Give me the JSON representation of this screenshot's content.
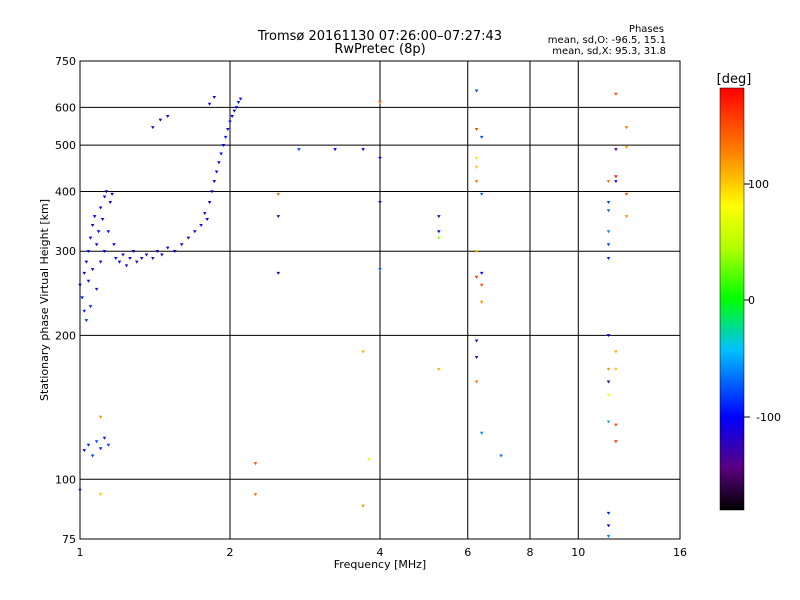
{
  "header": {
    "title_line1": "Tromsø 20161130 07:26:00–07:27:43",
    "title_line2": "RwPretec (8p)"
  },
  "stats": {
    "heading": "Phases",
    "line_o": "mean, sd,O: -96.5, 15.1",
    "line_x": "mean, sd,X:  95.3, 31.8"
  },
  "colorbar": {
    "unit_label": "[deg]",
    "ticks": [
      "100",
      "0",
      "-100"
    ]
  },
  "chart_data": {
    "type": "scatter",
    "xlabel": "Frequency [MHz]",
    "ylabel": "Stationary phase Virtual Height [km]",
    "x_scale": "log",
    "y_scale": "log",
    "xlim": [
      1,
      16
    ],
    "ylim": [
      75,
      750
    ],
    "x_ticks": [
      1,
      2,
      4,
      6,
      8,
      10,
      16
    ],
    "y_ticks": [
      75,
      100,
      200,
      300,
      400,
      500,
      600,
      750
    ],
    "grid": true,
    "color_scale": {
      "label": "[deg]",
      "range": [
        -180,
        180
      ],
      "colormap": "rainbow"
    },
    "series": [
      {
        "points": [
          {
            "f": 1.0,
            "h": 255,
            "p": -100
          },
          {
            "f": 1.01,
            "h": 240,
            "p": -95
          },
          {
            "f": 1.02,
            "h": 270,
            "p": -100
          },
          {
            "f": 1.02,
            "h": 225,
            "p": -90
          },
          {
            "f": 1.03,
            "h": 285,
            "p": -100
          },
          {
            "f": 1.03,
            "h": 215,
            "p": -85
          },
          {
            "f": 1.04,
            "h": 300,
            "p": -95
          },
          {
            "f": 1.04,
            "h": 260,
            "p": -100
          },
          {
            "f": 1.05,
            "h": 320,
            "p": -100
          },
          {
            "f": 1.05,
            "h": 230,
            "p": -90
          },
          {
            "f": 1.06,
            "h": 340,
            "p": -105
          },
          {
            "f": 1.06,
            "h": 275,
            "p": -100
          },
          {
            "f": 1.07,
            "h": 355,
            "p": -100
          },
          {
            "f": 1.08,
            "h": 250,
            "p": -95
          },
          {
            "f": 1.08,
            "h": 310,
            "p": -100
          },
          {
            "f": 1.09,
            "h": 330,
            "p": -100
          },
          {
            "f": 1.1,
            "h": 370,
            "p": -105
          },
          {
            "f": 1.1,
            "h": 285,
            "p": -100
          },
          {
            "f": 1.11,
            "h": 350,
            "p": -100
          },
          {
            "f": 1.12,
            "h": 390,
            "p": -105
          },
          {
            "f": 1.12,
            "h": 300,
            "p": -100
          },
          {
            "f": 1.13,
            "h": 400,
            "p": -110
          },
          {
            "f": 1.14,
            "h": 330,
            "p": -100
          },
          {
            "f": 1.15,
            "h": 380,
            "p": -105
          },
          {
            "f": 1.16,
            "h": 395,
            "p": -110
          },
          {
            "f": 1.17,
            "h": 310,
            "p": -100
          },
          {
            "f": 1.18,
            "h": 290,
            "p": -100
          },
          {
            "f": 1.2,
            "h": 285,
            "p": -105
          },
          {
            "f": 1.22,
            "h": 295,
            "p": -110
          },
          {
            "f": 1.24,
            "h": 280,
            "p": -115
          },
          {
            "f": 1.26,
            "h": 290,
            "p": -110
          },
          {
            "f": 1.28,
            "h": 300,
            "p": -110
          },
          {
            "f": 1.3,
            "h": 285,
            "p": -115
          },
          {
            "f": 1.33,
            "h": 290,
            "p": -115
          },
          {
            "f": 1.36,
            "h": 295,
            "p": -115
          },
          {
            "f": 1.4,
            "h": 290,
            "p": -115
          },
          {
            "f": 1.43,
            "h": 300,
            "p": -110
          },
          {
            "f": 1.46,
            "h": 295,
            "p": -115
          },
          {
            "f": 1.5,
            "h": 305,
            "p": -115
          },
          {
            "f": 1.55,
            "h": 300,
            "p": -110
          },
          {
            "f": 1.6,
            "h": 310,
            "p": -115
          },
          {
            "f": 1.65,
            "h": 320,
            "p": -115
          },
          {
            "f": 1.7,
            "h": 330,
            "p": -115
          },
          {
            "f": 1.75,
            "h": 340,
            "p": -115
          },
          {
            "f": 1.78,
            "h": 360,
            "p": -110
          },
          {
            "f": 1.8,
            "h": 350,
            "p": -110
          },
          {
            "f": 1.82,
            "h": 380,
            "p": -105
          },
          {
            "f": 1.84,
            "h": 400,
            "p": -110
          },
          {
            "f": 1.86,
            "h": 420,
            "p": -105
          },
          {
            "f": 1.88,
            "h": 440,
            "p": -105
          },
          {
            "f": 1.9,
            "h": 460,
            "p": -100
          },
          {
            "f": 1.92,
            "h": 480,
            "p": -100
          },
          {
            "f": 1.94,
            "h": 500,
            "p": -100
          },
          {
            "f": 1.96,
            "h": 520,
            "p": -95
          },
          {
            "f": 1.98,
            "h": 540,
            "p": -95
          },
          {
            "f": 2.0,
            "h": 560,
            "p": -95
          },
          {
            "f": 2.02,
            "h": 575,
            "p": -100
          },
          {
            "f": 2.04,
            "h": 590,
            "p": -95
          },
          {
            "f": 2.06,
            "h": 600,
            "p": -95
          },
          {
            "f": 2.08,
            "h": 615,
            "p": -95
          },
          {
            "f": 2.1,
            "h": 625,
            "p": -95
          },
          {
            "f": 1.4,
            "h": 545,
            "p": -115
          },
          {
            "f": 1.45,
            "h": 565,
            "p": -120
          },
          {
            "f": 1.5,
            "h": 575,
            "p": -115
          },
          {
            "f": 1.82,
            "h": 610,
            "p": -120
          },
          {
            "f": 1.86,
            "h": 630,
            "p": -115
          },
          {
            "f": 1.02,
            "h": 115,
            "p": -100
          },
          {
            "f": 1.04,
            "h": 118,
            "p": -90
          },
          {
            "f": 1.06,
            "h": 112,
            "p": -85
          },
          {
            "f": 1.08,
            "h": 120,
            "p": -80
          },
          {
            "f": 1.1,
            "h": 116,
            "p": -90
          },
          {
            "f": 1.12,
            "h": 122,
            "p": -95
          },
          {
            "f": 1.14,
            "h": 118,
            "p": -85
          }
        ]
      },
      {
        "points": [
          {
            "f": 1.1,
            "h": 135,
            "p": 120
          },
          {
            "f": 1.1,
            "h": 93,
            "p": 100
          },
          {
            "f": 1.0,
            "h": 95,
            "p": -80
          },
          {
            "f": 2.25,
            "h": 108,
            "p": 150
          },
          {
            "f": 2.25,
            "h": 93,
            "p": 130
          },
          {
            "f": 2.5,
            "h": 355,
            "p": -130
          },
          {
            "f": 2.5,
            "h": 270,
            "p": -110
          },
          {
            "f": 2.5,
            "h": 395,
            "p": 140
          },
          {
            "f": 2.75,
            "h": 490,
            "p": -80
          },
          {
            "f": 3.25,
            "h": 490,
            "p": -100
          },
          {
            "f": 3.7,
            "h": 490,
            "p": -120
          },
          {
            "f": 3.7,
            "h": 185,
            "p": 110
          },
          {
            "f": 3.7,
            "h": 88,
            "p": 120
          },
          {
            "f": 3.8,
            "h": 110,
            "p": 60
          },
          {
            "f": 4.0,
            "h": 380,
            "p": -110
          },
          {
            "f": 4.0,
            "h": 470,
            "p": -100
          },
          {
            "f": 4.0,
            "h": 275,
            "p": -70
          },
          {
            "f": 4.0,
            "h": 615,
            "p": 140
          },
          {
            "f": 5.25,
            "h": 355,
            "p": -130
          },
          {
            "f": 5.25,
            "h": 330,
            "p": -100
          },
          {
            "f": 5.25,
            "h": 320,
            "p": 40
          },
          {
            "f": 5.25,
            "h": 170,
            "p": 110
          },
          {
            "f": 6.25,
            "h": 650,
            "p": -80
          },
          {
            "f": 6.25,
            "h": 540,
            "p": 150
          },
          {
            "f": 6.25,
            "h": 470,
            "p": 90
          },
          {
            "f": 6.25,
            "h": 450,
            "p": 100
          },
          {
            "f": 6.25,
            "h": 420,
            "p": 130
          },
          {
            "f": 6.25,
            "h": 300,
            "p": 100
          },
          {
            "f": 6.25,
            "h": 265,
            "p": 160
          },
          {
            "f": 6.25,
            "h": 195,
            "p": -120
          },
          {
            "f": 6.25,
            "h": 180,
            "p": -130
          },
          {
            "f": 6.25,
            "h": 160,
            "p": 130
          },
          {
            "f": 6.4,
            "h": 520,
            "p": -80
          },
          {
            "f": 6.4,
            "h": 395,
            "p": -70
          },
          {
            "f": 6.4,
            "h": 270,
            "p": -100
          },
          {
            "f": 6.4,
            "h": 255,
            "p": 150
          },
          {
            "f": 6.4,
            "h": 235,
            "p": 120
          },
          {
            "f": 6.4,
            "h": 125,
            "p": -60
          },
          {
            "f": 7.0,
            "h": 112,
            "p": -70
          },
          {
            "f": 11.5,
            "h": 420,
            "p": 130
          },
          {
            "f": 11.5,
            "h": 380,
            "p": -80
          },
          {
            "f": 11.5,
            "h": 365,
            "p": -70
          },
          {
            "f": 11.5,
            "h": 330,
            "p": -60
          },
          {
            "f": 11.5,
            "h": 310,
            "p": -80
          },
          {
            "f": 11.5,
            "h": 290,
            "p": -90
          },
          {
            "f": 11.5,
            "h": 200,
            "p": -110
          },
          {
            "f": 11.5,
            "h": 170,
            "p": 120
          },
          {
            "f": 11.5,
            "h": 160,
            "p": -130
          },
          {
            "f": 11.5,
            "h": 150,
            "p": 80
          },
          {
            "f": 11.5,
            "h": 132,
            "p": -50
          },
          {
            "f": 11.5,
            "h": 85,
            "p": -90
          },
          {
            "f": 11.5,
            "h": 80,
            "p": -110
          },
          {
            "f": 11.5,
            "h": 76,
            "p": -60
          },
          {
            "f": 11.9,
            "h": 640,
            "p": 150
          },
          {
            "f": 11.9,
            "h": 490,
            "p": -140
          },
          {
            "f": 11.9,
            "h": 430,
            "p": 170
          },
          {
            "f": 11.9,
            "h": 420,
            "p": -130
          },
          {
            "f": 11.9,
            "h": 185,
            "p": 110
          },
          {
            "f": 11.9,
            "h": 170,
            "p": 100
          },
          {
            "f": 11.9,
            "h": 130,
            "p": 150
          },
          {
            "f": 11.9,
            "h": 120,
            "p": 160
          },
          {
            "f": 12.5,
            "h": 545,
            "p": 130
          },
          {
            "f": 12.5,
            "h": 495,
            "p": 110
          },
          {
            "f": 12.5,
            "h": 395,
            "p": 150
          },
          {
            "f": 12.5,
            "h": 355,
            "p": 120
          }
        ]
      }
    ]
  }
}
